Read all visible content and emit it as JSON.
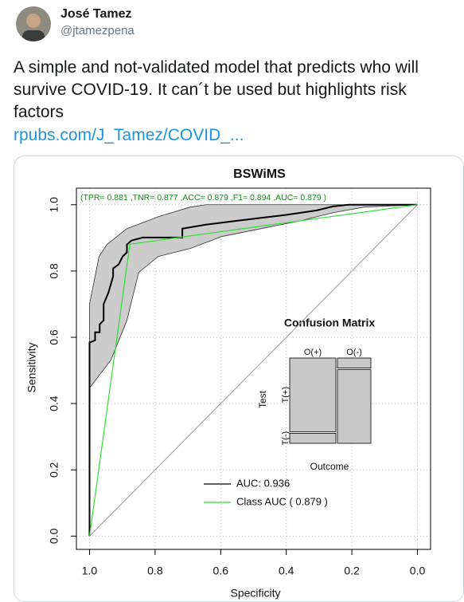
{
  "user": {
    "name": "José Tamez",
    "handle": "@jtamezpena"
  },
  "tweet": {
    "text": "A simple and not-validated model that predicts who will survive COVID-19. It can´t be used but highlights risk factors",
    "link": "rpubs.com/J_Tamez/COVID_..."
  },
  "chart_data": {
    "type": "line",
    "title": "BSWiMS",
    "xlabel": "Specificity",
    "ylabel": "Sensitivity",
    "annotation": "(TPR= 0.881 ,TNR= 0.877 ,ACC= 0.879 ,F1= 0.894 ,AUC= 0.879 )",
    "annotation_color": "#1a8a1a",
    "xlim": [
      1.04,
      -0.04
    ],
    "ylim": [
      -0.04,
      1.05
    ],
    "xticks": [
      {
        "value": 1,
        "label": "1.0"
      },
      0.8,
      0.6,
      0.4,
      0.2,
      {
        "value": 0,
        "label": "0.0"
      }
    ],
    "yticks": [
      {
        "value": 0,
        "label": "0.0"
      },
      0.2,
      0.4,
      0.6,
      0.8,
      {
        "value": 1,
        "label": "1.0"
      }
    ],
    "grid": true,
    "reference_line": true,
    "legend": "bottom",
    "band": {
      "color": "#cccccc",
      "x": [
        1,
        1,
        0.971,
        0.947,
        0.886,
        0.79,
        0.693,
        0.645,
        0,
        0.162,
        0.258,
        0.355,
        0.476,
        0.597,
        0.693,
        0.79,
        0.85,
        0.886,
        0.935,
        1
      ],
      "values": [
        0.447,
        0.7,
        0.844,
        0.88,
        0.928,
        0.964,
        0.993,
        1,
        1,
        0.993,
        0.976,
        0.952,
        0.928,
        0.904,
        0.868,
        0.844,
        0.796,
        0.651,
        0.531,
        0.447
      ]
    },
    "series": [
      {
        "name": "AUC:  0.936",
        "color": "#000000",
        "x": [
          1,
          1,
          0.983,
          0.983,
          0.969,
          0.969,
          0.957,
          0.957,
          0.942,
          0.928,
          0.928,
          0.911,
          0.899,
          0.886,
          0.886,
          0.872,
          0.838,
          0.717,
          0.717,
          0.645,
          0.548,
          0.403,
          0.307,
          0.258,
          0.21,
          0
        ],
        "values": [
          0,
          0.584,
          0.591,
          0.615,
          0.615,
          0.639,
          0.651,
          0.7,
          0.736,
          0.784,
          0.808,
          0.82,
          0.844,
          0.856,
          0.88,
          0.892,
          0.901,
          0.901,
          0.928,
          0.94,
          0.952,
          0.969,
          0.983,
          0.995,
          1,
          1
        ]
      },
      {
        "name": "Class AUC ( 0.879 )",
        "color": "#33dd33",
        "x": [
          1,
          0.877,
          0
        ],
        "values": [
          0,
          0.881,
          1
        ]
      }
    ],
    "confusion_matrix": {
      "title": "Confusion Matrix",
      "xlabel": "Outcome",
      "ylabel": "Test",
      "columns": [
        "O(+)",
        "O(-)"
      ],
      "rows": [
        "T(+)",
        "T(-)"
      ],
      "column_share": [
        0.58,
        0.42
      ],
      "cells": [
        [
          0.88,
          0.12
        ],
        [
          0.12,
          0.88
        ]
      ]
    }
  }
}
